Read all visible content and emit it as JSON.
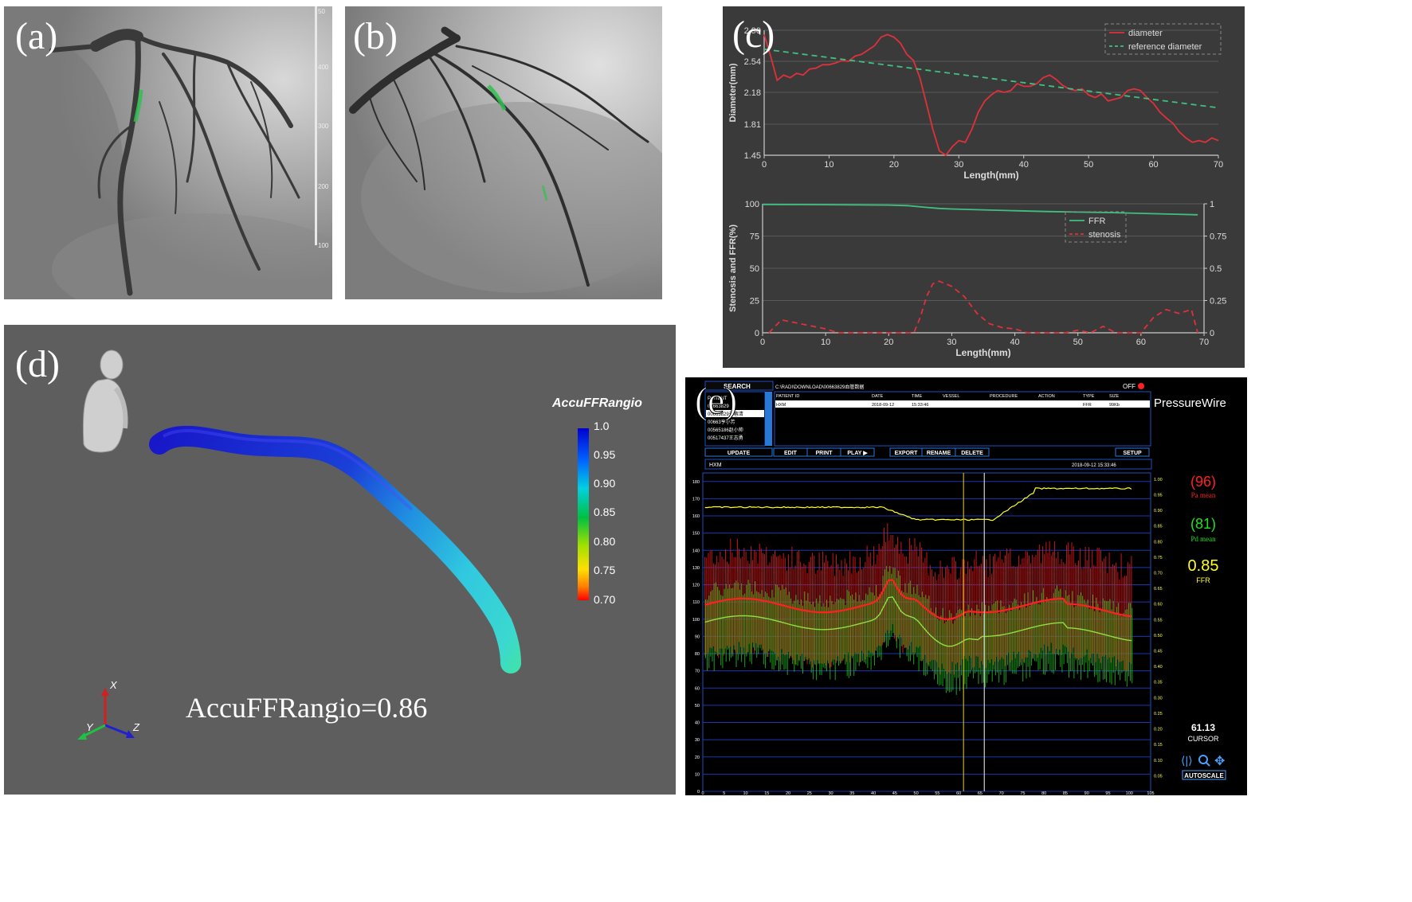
{
  "labels": {
    "a": "(a)",
    "b": "(b)",
    "c": "(c)",
    "d": "(d)",
    "e": "(e)"
  },
  "panel_a": {
    "scale_ticks": [
      "50",
      "400",
      "300",
      "200",
      "100"
    ]
  },
  "panel_d": {
    "colorbar_title": "AccuFFRangio",
    "colorbar_ticks": [
      "1.0",
      "0.95",
      "0.90",
      "0.85",
      "0.80",
      "0.75",
      "0.70"
    ],
    "result_text": "AccuFFRangio=0.86",
    "axes": {
      "x": "X",
      "y": "Y",
      "z": "Z"
    },
    "colors": {
      "bg": "#5e5e5e",
      "high": "#1010d0",
      "mid": "#30d0e0",
      "low": "#ff1010"
    }
  },
  "panel_e": {
    "search_label": "SEARCH",
    "path": "C:\\RADI\\DOWNLOAD\\00663829血管数据",
    "off_label": "OFF",
    "brand": "PressureWire",
    "columns": [
      "PATIENT ID",
      "DATE",
      "TIME",
      "VESSEL",
      "PROCEDURE",
      "ACTION",
      "TYPE",
      "SIZE"
    ],
    "row": [
      "HXM",
      "2018-09-12",
      "15:33:46",
      "",
      "",
      "",
      "FFR",
      "99Kb"
    ],
    "patient_list": [
      "PATIENT",
      "00663829",
      "00663829于蓉清",
      "00663亨小芳",
      "00565186赵小帅",
      "00517437王志勇"
    ],
    "buttons_left": [
      "UPDATE",
      "EDIT",
      "PRINT",
      "PLAY ▶"
    ],
    "buttons_right": [
      "EXPORT",
      "RENAME",
      "DELETE"
    ],
    "setup": "SETUP",
    "trace_name": "HXM",
    "trace_time": "2018-09-12 15:33:46",
    "pa_value": "(96)",
    "pa_label": "Pa mean",
    "pd_value": "(81)",
    "pd_label": "Pd mean",
    "ffr_value": "0.85",
    "ffr_label": "FFR",
    "cursor_value": "61.13",
    "cursor_label": "CURSOR",
    "autoscale": "AUTOSCALE",
    "left_ticks": [
      "180",
      "170",
      "160",
      "150",
      "140",
      "130",
      "120",
      "110",
      "100",
      "90",
      "80",
      "70",
      "60",
      "50",
      "40",
      "30",
      "20",
      "10",
      "0"
    ],
    "right_ticks": [
      "1.00",
      "0.95",
      "0.90",
      "0.85",
      "0.80",
      "0.75",
      "0.70",
      "0.65",
      "0.60",
      "0.55",
      "0.50",
      "0.45",
      "0.40",
      "0.35",
      "0.30",
      "0.25",
      "0.20",
      "0.15",
      "0.10",
      "0.05"
    ],
    "x_ticks": [
      "0",
      "5",
      "10",
      "15",
      "20",
      "25",
      "30",
      "35",
      "40",
      "45",
      "50",
      "55",
      "60",
      "65",
      "70",
      "75",
      "80",
      "85",
      "90",
      "95",
      "100",
      "105"
    ],
    "cursor_positions": [
      61.13,
      66
    ]
  },
  "chart_data": [
    {
      "type": "line",
      "xlabel": "Length(mm)",
      "ylabel": "Diameter(mm)",
      "xlim": [
        0,
        70
      ],
      "ylim": [
        1.45,
        2.9
      ],
      "x_ticks": [
        0,
        10,
        20,
        30,
        40,
        50,
        60,
        70
      ],
      "y_ticks": [
        1.45,
        1.81,
        2.18,
        2.54,
        2.9
      ],
      "y_tick_labels": [
        "1.45",
        "1.81",
        "2.18",
        "2.54",
        "2.90"
      ],
      "legend": "top-right",
      "grid": true,
      "series": [
        {
          "name": "diameter",
          "color": "#e0303a",
          "style": "solid",
          "x": [
            0,
            1,
            2,
            3,
            4,
            5,
            6,
            7,
            8,
            9,
            10,
            11,
            12,
            13,
            14,
            15,
            16,
            17,
            18,
            19,
            20,
            21,
            22,
            23,
            24,
            25,
            26,
            27,
            28,
            29,
            30,
            31,
            32,
            33,
            34,
            35,
            36,
            37,
            38,
            39,
            40,
            41,
            42,
            43,
            44,
            45,
            46,
            47,
            48,
            49,
            50,
            51,
            52,
            53,
            54,
            55,
            56,
            57,
            58,
            59,
            60,
            61,
            62,
            63,
            64,
            65,
            66,
            67,
            68,
            69,
            70
          ],
          "values": [
            2.85,
            2.6,
            2.32,
            2.38,
            2.35,
            2.4,
            2.38,
            2.45,
            2.46,
            2.5,
            2.5,
            2.52,
            2.55,
            2.54,
            2.6,
            2.62,
            2.67,
            2.72,
            2.82,
            2.85,
            2.82,
            2.75,
            2.62,
            2.55,
            2.35,
            2.05,
            1.75,
            1.5,
            1.45,
            1.55,
            1.62,
            1.6,
            1.75,
            1.95,
            2.08,
            2.15,
            2.2,
            2.18,
            2.2,
            2.28,
            2.25,
            2.25,
            2.28,
            2.35,
            2.38,
            2.33,
            2.26,
            2.22,
            2.2,
            2.22,
            2.15,
            2.12,
            2.16,
            2.08,
            2.1,
            2.12,
            2.2,
            2.22,
            2.2,
            2.12,
            2.05,
            1.95,
            1.88,
            1.82,
            1.72,
            1.65,
            1.6,
            1.62,
            1.6,
            1.65,
            1.62
          ]
        },
        {
          "name": "reference diameter",
          "color": "#40c080",
          "style": "dashed",
          "x": [
            0,
            70
          ],
          "values": [
            2.68,
            2.0
          ]
        }
      ]
    },
    {
      "type": "line",
      "xlabel": "Length(mm)",
      "ylabel": "Stenosis and FFR(%)",
      "xlim": [
        0,
        70
      ],
      "ylim": [
        0,
        100
      ],
      "x_ticks": [
        0,
        10,
        20,
        30,
        40,
        50,
        60,
        70
      ],
      "y_ticks": [
        0,
        25,
        50,
        75,
        100
      ],
      "y2lim": [
        0,
        1
      ],
      "y2_ticks": [
        "0",
        "0.25",
        "0.5",
        "0.75",
        "1"
      ],
      "legend": "top-right",
      "grid": true,
      "series": [
        {
          "name": "FFR",
          "color": "#40c080",
          "style": "solid",
          "x": [
            0,
            10,
            20,
            23,
            26,
            28,
            30,
            35,
            40,
            45,
            50,
            55,
            60,
            65,
            69
          ],
          "values": [
            99.5,
            99.3,
            99.0,
            98.6,
            97.2,
            96.4,
            96.0,
            95.3,
            94.6,
            94.0,
            93.6,
            93.2,
            92.6,
            92.0,
            91.5
          ]
        },
        {
          "name": "stenosis",
          "color": "#e0303a",
          "style": "dashed",
          "x": [
            1,
            3,
            5,
            8,
            10,
            12,
            14,
            16,
            18,
            20,
            22,
            24,
            25,
            26,
            27,
            28,
            30,
            32,
            34,
            36,
            38,
            40,
            42,
            44,
            46,
            48,
            50,
            52,
            54,
            56,
            58,
            60,
            62,
            64,
            66,
            68,
            69
          ],
          "values": [
            0,
            10,
            8,
            5,
            3,
            0,
            0,
            0,
            0,
            0,
            0,
            0,
            12,
            28,
            38,
            40,
            36,
            28,
            15,
            7,
            4,
            3,
            0,
            0,
            0,
            0,
            2,
            0,
            5,
            0,
            0,
            0,
            12,
            18,
            15,
            18,
            0
          ]
        }
      ]
    }
  ]
}
